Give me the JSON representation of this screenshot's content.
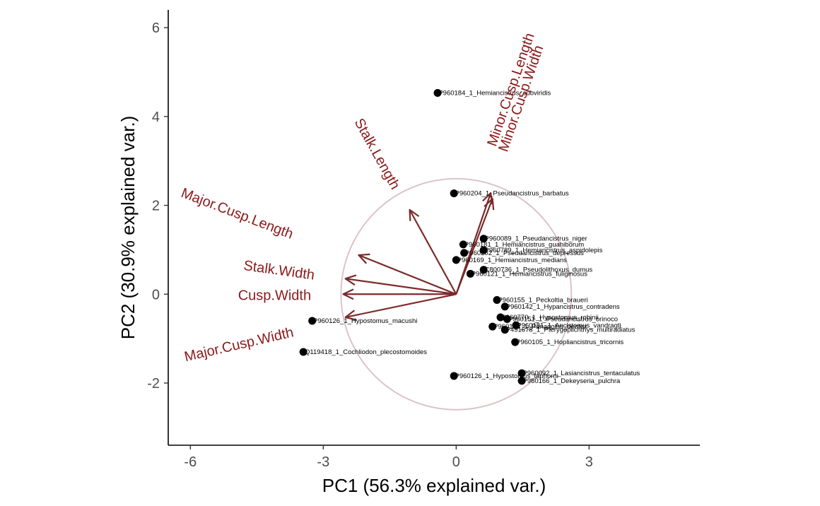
{
  "chart_data": {
    "type": "scatter",
    "subtype": "pca-biplot",
    "xlabel": "PC1 (56.3% explained var.)",
    "ylabel": "PC2 (30.9% explained var.)",
    "xlim": [
      -6.5,
      5.5
    ],
    "ylim": [
      -3.4,
      6.4
    ],
    "xticks": [
      -6,
      -3,
      0,
      3
    ],
    "xtick_labels": [
      "-6",
      "-3",
      "0",
      "3"
    ],
    "yticks": [
      -2,
      0,
      2,
      4,
      6
    ],
    "ytick_labels": [
      "-2",
      "0",
      "2",
      "4",
      "6"
    ],
    "grid": false,
    "legend": "none",
    "colors": {
      "points": "#000000",
      "arrows": "#7b2a2a",
      "var_labels": "#8b1a1a",
      "circle": "#dcc3c8",
      "axis": "#000000",
      "ticks": "#4d4d4d"
    },
    "circle": {
      "center": [
        0,
        0
      ],
      "radius": 2.6
    },
    "points": [
      {
        "label": "KP960184_1_Hemiancistrus_subviridis",
        "x": -0.42,
        "y": 4.53
      },
      {
        "label": "KP960204_1_Pseudancistrus_barbatus",
        "x": -0.05,
        "y": 2.27
      },
      {
        "label": "KP960089_1_Pseudancistrus_niger",
        "x": 0.62,
        "y": 1.25
      },
      {
        "label": "KP960181_1_Hemiancistrus_guahiborum",
        "x": 0.16,
        "y": 1.12
      },
      {
        "label": "KP960202_1_Pseudancistrus_depressus",
        "x": 0.18,
        "y": 0.93
      },
      {
        "label": "KP960789_1_Hemiancistrus_aspidolepis",
        "x": 0.62,
        "y": 0.99
      },
      {
        "label": "KP960169_1_Hemiancistrus_medians",
        "x": 0.0,
        "y": 0.77
      },
      {
        "label": "KC800736_1_Pseudolithoxus_dumus",
        "x": 0.62,
        "y": 0.55
      },
      {
        "label": "KP960121_1_Hemiancistrus_fuliginosus",
        "x": 0.32,
        "y": 0.46
      },
      {
        "label": "KP960155_1_Peckoltia_braueri",
        "x": 0.92,
        "y": -0.13
      },
      {
        "label": "KP960142_1_Hypancistrus_contradens",
        "x": 1.1,
        "y": -0.28
      },
      {
        "label": "KP960770_1_Hypostomus_robinii",
        "x": 1.0,
        "y": -0.52
      },
      {
        "label": "KP960151_1_Pseudancistrus_orinoco",
        "x": 1.15,
        "y": -0.56
      },
      {
        "label": "KP960148_1_Panaqolus_dentex",
        "x": 0.82,
        "y": -0.73
      },
      {
        "label": "KP960181_1_Ancistomus_vandragti",
        "x": 1.35,
        "y": -0.7
      },
      {
        "label": "KP491678_1_Pterygoplichthys_multiradiatus",
        "x": 1.1,
        "y": -0.8
      },
      {
        "label": "KP960105_1_Hopliancistrus_tricornis",
        "x": 1.33,
        "y": -1.08
      },
      {
        "label": "KP960126_1_Hypostomus_macushi",
        "x": -3.25,
        "y": -0.6
      },
      {
        "label": "DQ119418_1_Cochliodon_plecostomoides",
        "x": -3.45,
        "y": -1.3
      },
      {
        "label": "KP960126_1_Hypostomus_taphorni",
        "x": -0.05,
        "y": -1.84
      },
      {
        "label": "KP960092_1_Lasiancistrus_tentaculatus",
        "x": 1.48,
        "y": -1.78
      },
      {
        "label": "KP960166_1_Dekeyseria_pulchra",
        "x": 1.48,
        "y": -1.95
      }
    ],
    "loadings": [
      {
        "name": "Minor.Cusp.Length",
        "x": 0.78,
        "y": 2.28,
        "label_x": 1.25,
        "label_y": 4.6,
        "label_angle": -71
      },
      {
        "name": "Minor.Cusp.Width",
        "x": 0.82,
        "y": 2.15,
        "label_x": 1.48,
        "label_y": 4.4,
        "label_angle": -71
      },
      {
        "name": "Stalk.Length",
        "x": -1.05,
        "y": 1.9,
        "label_x": -1.8,
        "label_y": 3.15,
        "label_angle": 61
      },
      {
        "name": "Major.Cusp.Length",
        "x": -2.2,
        "y": 0.88,
        "label_x": -4.95,
        "label_y": 1.8,
        "label_angle": 21
      },
      {
        "name": "Stalk.Width",
        "x": -2.5,
        "y": 0.35,
        "label_x": -4.0,
        "label_y": 0.52,
        "label_angle": 8
      },
      {
        "name": "Cusp.Width",
        "x": -2.55,
        "y": 0.0,
        "label_x": -4.1,
        "label_y": -0.05,
        "label_angle": 0
      },
      {
        "name": "Major.Cusp.Width",
        "x": -2.5,
        "y": -0.52,
        "label_x": -4.9,
        "label_y": -1.15,
        "label_angle": -13
      }
    ]
  }
}
